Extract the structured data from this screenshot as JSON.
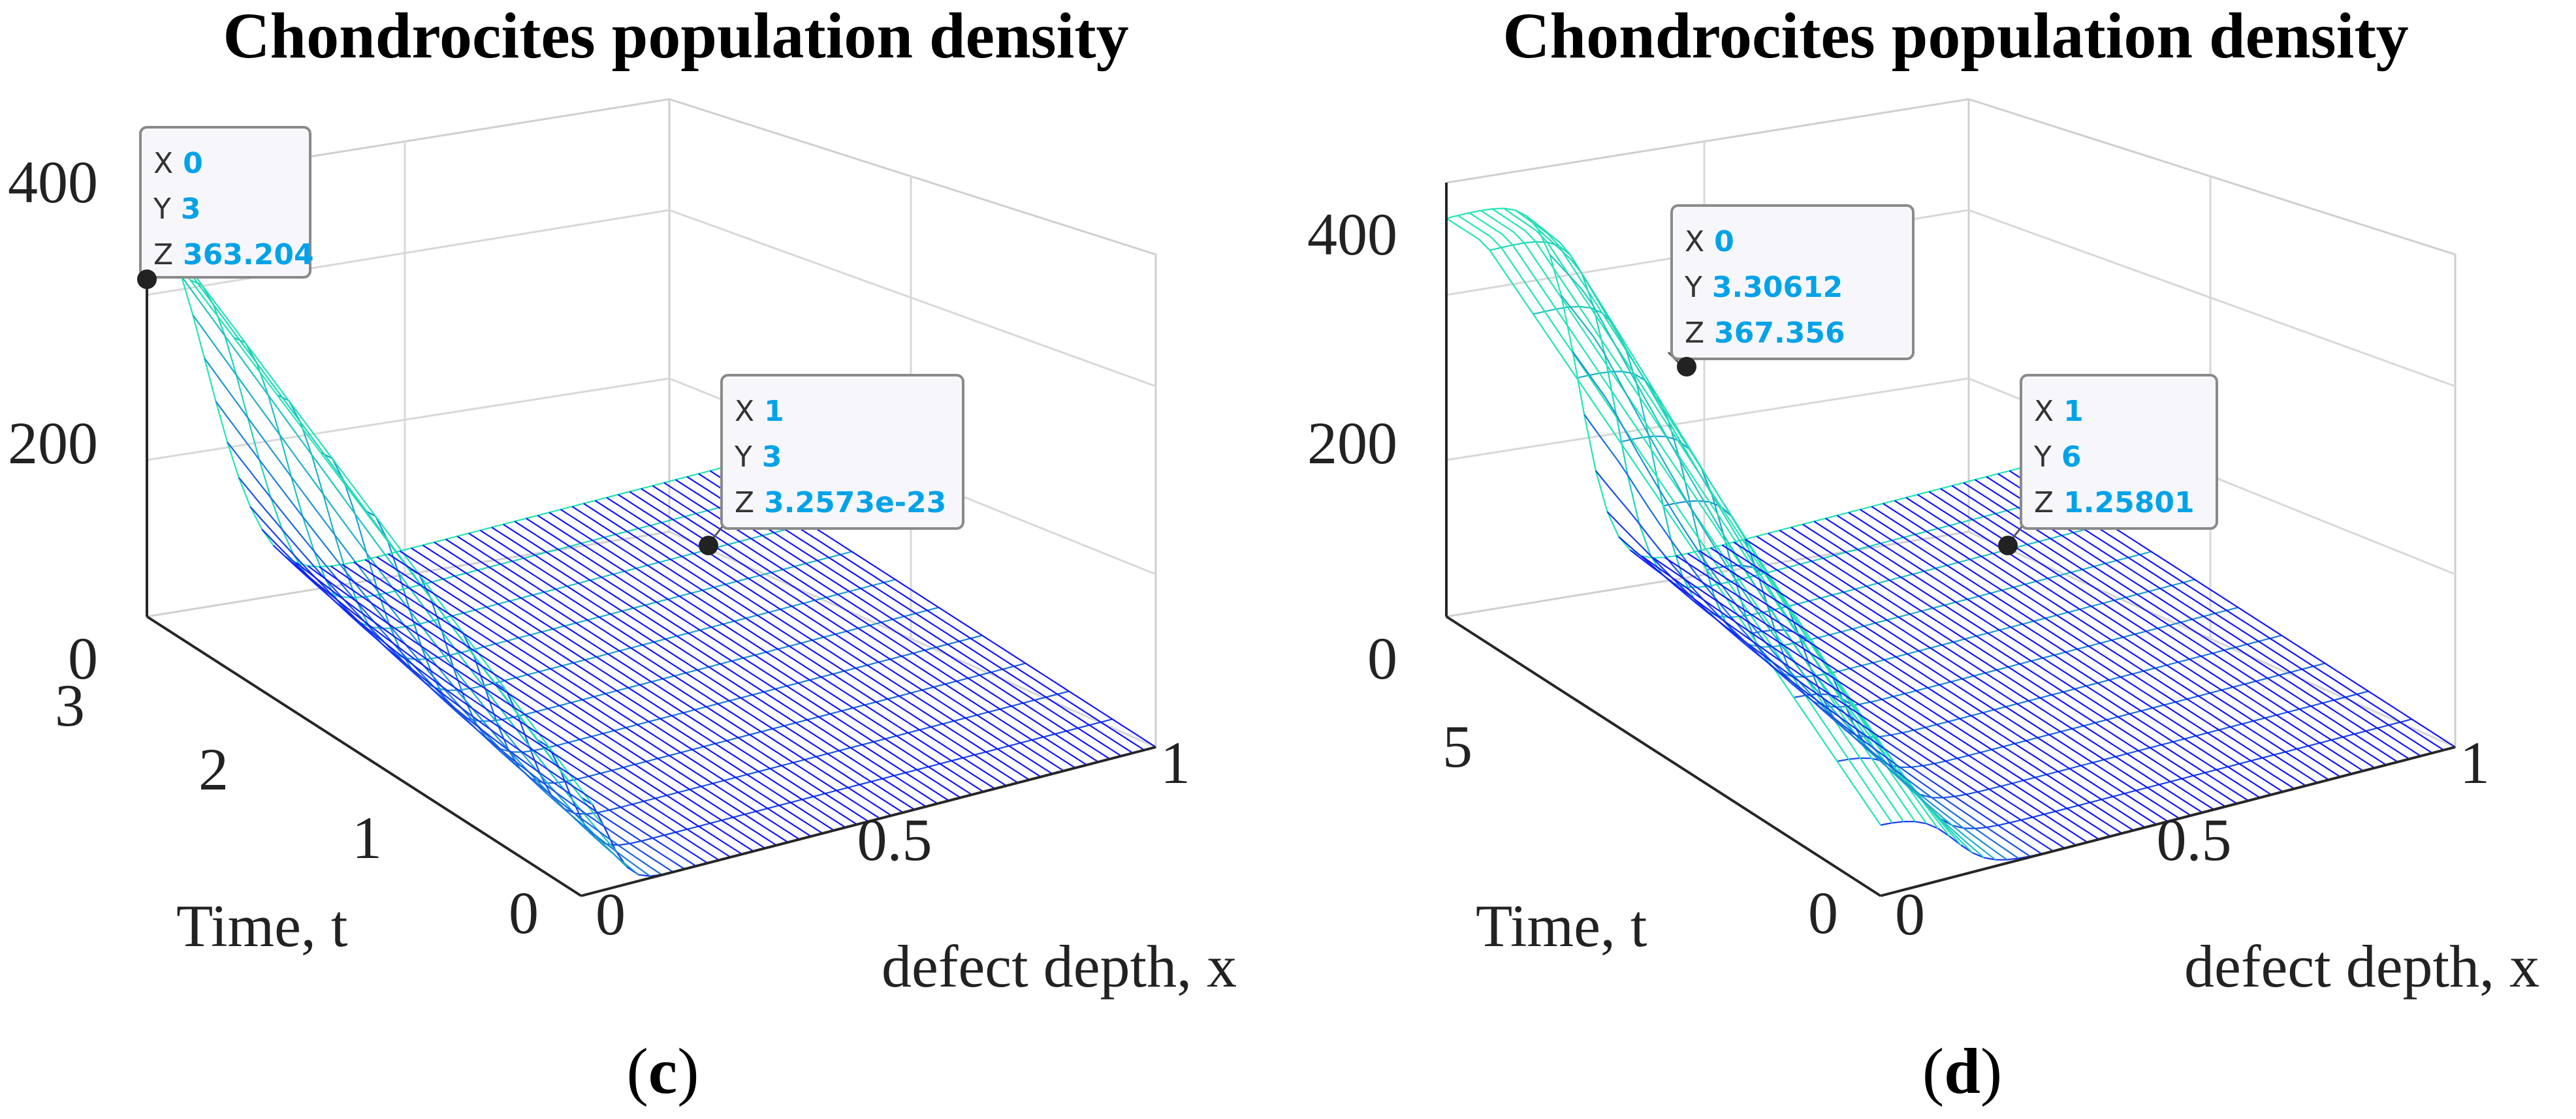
{
  "chart_data": [
    {
      "panel": "c",
      "type": "surface",
      "title": "Chondrocites population density",
      "xlabel": "defect depth, x",
      "ylabel": "Time, t",
      "zlabel": "",
      "xlim": [
        0,
        1
      ],
      "ylim": [
        0,
        3
      ],
      "zlim": [
        0,
        400
      ],
      "x_ticks": [
        "0",
        "0.5",
        "1"
      ],
      "y_ticks": [
        "0",
        "1",
        "2",
        "3"
      ],
      "z_ticks": [
        "0",
        "200",
        "400"
      ],
      "grid": true,
      "profile": {
        "peak": 363.204,
        "width": 0.085,
        "shape": "gaussian"
      },
      "datatips": [
        {
          "labels": [
            "X",
            "Y",
            "Z"
          ],
          "values": [
            "0",
            "3",
            "363.204"
          ]
        },
        {
          "labels": [
            "X",
            "Y",
            "Z"
          ],
          "values": [
            "1",
            "3",
            "3.2573e-23"
          ]
        }
      ],
      "caption": {
        "open": "(",
        "letter": "c",
        "close": ")"
      }
    },
    {
      "panel": "d",
      "type": "surface",
      "title": "Chondrocites population density",
      "xlabel": "defect depth, x",
      "ylabel": "Time, t",
      "zlabel": "",
      "xlim": [
        0,
        1
      ],
      "ylim": [
        0,
        6
      ],
      "zlim": [
        0,
        400
      ],
      "x_ticks": [
        "0",
        "0.5",
        "1"
      ],
      "y_ticks": [
        "0",
        "5"
      ],
      "z_ticks": [
        "0",
        "200",
        "400"
      ],
      "grid": true,
      "profile": {
        "peak": 367.356,
        "width": 0.09,
        "shape": "plateau"
      },
      "datatips": [
        {
          "labels": [
            "X",
            "Y",
            "Z"
          ],
          "values": [
            "0",
            "3.30612",
            "367.356"
          ]
        },
        {
          "labels": [
            "X",
            "Y",
            "Z"
          ],
          "values": [
            "1",
            "6",
            "1.25801"
          ]
        }
      ],
      "caption": {
        "open": "(",
        "letter": "d",
        "close": ")"
      }
    }
  ],
  "colors": {
    "surface_low": "#1414ff",
    "surface_high": "#21e6b4",
    "tip_value": "#00a2e8",
    "axis": "#262626",
    "grid": "#d8d8d8"
  }
}
